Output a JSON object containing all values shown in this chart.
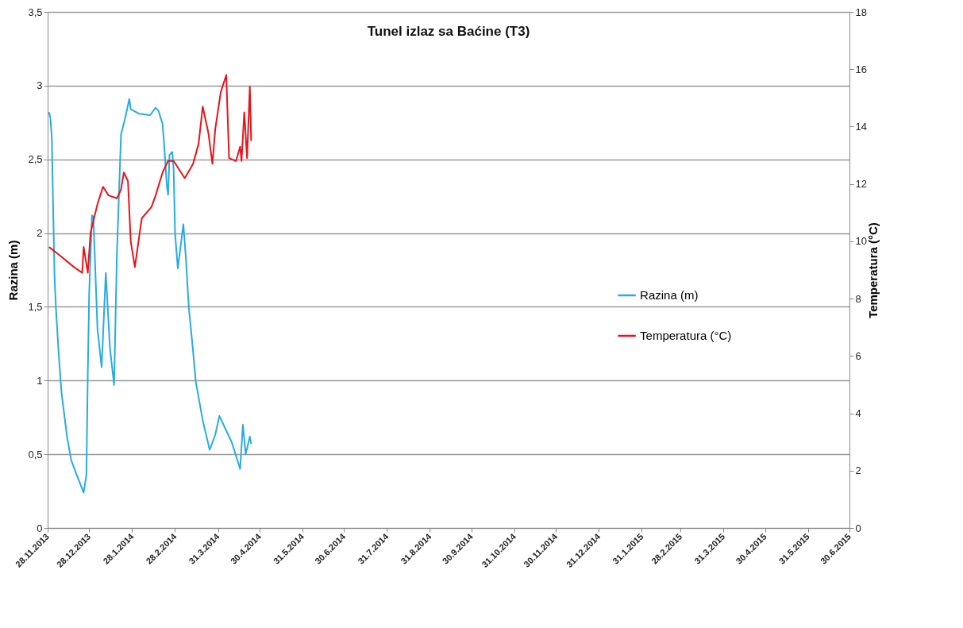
{
  "chart_data": {
    "type": "line",
    "title": "Tunel izlaz sa Baćine (T3)",
    "ylabel": "Razina (m)",
    "y2label": "Temperatura (°C)",
    "xlim": [
      "2013-11-28",
      "2015-06-30"
    ],
    "xticks": [
      {
        "value": "2013-11-28",
        "label": "28.11.2013"
      },
      {
        "value": "2013-12-28",
        "label": "28.12.2013"
      },
      {
        "value": "2014-01-28",
        "label": "28.1.2014"
      },
      {
        "value": "2014-02-28",
        "label": "28.2.2014"
      },
      {
        "value": "2014-03-31",
        "label": "31.3.2014"
      },
      {
        "value": "2014-04-30",
        "label": "30.4.2014"
      },
      {
        "value": "2014-05-31",
        "label": "31.5.2014"
      },
      {
        "value": "2014-06-30",
        "label": "30.6.2014"
      },
      {
        "value": "2014-07-31",
        "label": "31.7.2014"
      },
      {
        "value": "2014-08-31",
        "label": "31.8.2014"
      },
      {
        "value": "2014-09-30",
        "label": "30.9.2014"
      },
      {
        "value": "2014-10-31",
        "label": "31.10.2014"
      },
      {
        "value": "2014-11-30",
        "label": "30.11.2014"
      },
      {
        "value": "2014-12-31",
        "label": "31.12.2014"
      },
      {
        "value": "2015-01-31",
        "label": "31.1.2015"
      },
      {
        "value": "2015-02-28",
        "label": "28.2.2015"
      },
      {
        "value": "2015-03-31",
        "label": "31.3.2015"
      },
      {
        "value": "2015-04-30",
        "label": "30.4.2015"
      },
      {
        "value": "2015-05-31",
        "label": "31.5.2015"
      },
      {
        "value": "2015-06-30",
        "label": "30.6.2015"
      }
    ],
    "ylim": [
      0,
      3.5
    ],
    "yticks": [
      0,
      {
        "value": 0.5,
        "label": "0,5"
      },
      1,
      {
        "value": 1.5,
        "label": "1,5"
      },
      2,
      {
        "value": 2.5,
        "label": "2,5"
      },
      3,
      {
        "value": 3.5,
        "label": "3,5"
      }
    ],
    "y2lim": [
      0,
      18
    ],
    "y2ticks": [
      0,
      2,
      4,
      6,
      8,
      10,
      12,
      14,
      16,
      18
    ],
    "grid": "y",
    "legend": "right",
    "marker": "none",
    "line_style": "solid",
    "series": [
      {
        "name": "Razina (m)",
        "color": "#29abe2",
        "x": [
          "2013-11-29",
          "2013-11-30",
          "2013-12-01",
          "2013-12-02",
          "2013-12-03",
          "2013-12-04",
          "2013-12-06",
          "2013-12-08",
          "2013-12-12",
          "2013-12-15",
          "2013-12-19",
          "2013-12-24",
          "2013-12-26",
          "2013-12-27",
          "2013-12-28",
          "2013-12-30",
          "2013-12-31",
          "2014-01-03",
          "2014-01-06",
          "2014-01-09",
          "2014-01-12",
          "2014-01-15",
          "2014-01-17",
          "2014-01-20",
          "2014-01-23",
          "2014-01-26",
          "2014-01-27",
          "2014-02-02",
          "2014-02-10",
          "2014-02-14",
          "2014-02-16",
          "2014-02-19",
          "2014-02-20",
          "2014-02-22",
          "2014-02-23",
          "2014-02-24",
          "2014-02-26",
          "2014-02-27",
          "2014-02-28",
          "2014-03-02",
          "2014-03-06",
          "2014-03-08",
          "2014-03-09",
          "2014-03-10",
          "2014-03-13",
          "2014-03-15",
          "2014-03-20",
          "2014-03-25",
          "2014-03-29",
          "2014-04-01",
          "2014-04-04",
          "2014-04-10",
          "2014-04-16",
          "2014-04-18",
          "2014-04-20",
          "2014-04-23",
          "2014-04-24"
        ],
        "values": [
          2.82,
          2.78,
          2.65,
          2.16,
          1.7,
          1.49,
          1.18,
          0.92,
          0.62,
          0.46,
          0.36,
          0.24,
          0.36,
          1.05,
          1.59,
          2.12,
          2.11,
          1.35,
          1.09,
          1.73,
          1.22,
          0.97,
          1.85,
          2.67,
          2.78,
          2.91,
          2.84,
          2.81,
          2.8,
          2.85,
          2.83,
          2.74,
          2.62,
          2.33,
          2.26,
          2.53,
          2.55,
          2.43,
          2.0,
          1.76,
          2.06,
          1.81,
          1.64,
          1.49,
          1.2,
          0.99,
          0.73,
          0.53,
          0.63,
          0.76,
          0.7,
          0.58,
          0.4,
          0.7,
          0.5,
          0.62,
          0.57
        ]
      },
      {
        "name": "Temperatura (°C)",
        "color": "#e8141b",
        "axis": "y2",
        "x": [
          "2013-11-29",
          "2013-12-07",
          "2013-12-17",
          "2013-12-23",
          "2013-12-24",
          "2013-12-27",
          "2013-12-29",
          "2014-01-01",
          "2014-01-03",
          "2014-01-07",
          "2014-01-11",
          "2014-01-17",
          "2014-01-20",
          "2014-01-22",
          "2014-01-25",
          "2014-01-27",
          "2014-01-30",
          "2014-02-04",
          "2014-02-11",
          "2014-02-14",
          "2014-02-19",
          "2014-02-23",
          "2014-02-27",
          "2014-03-07",
          "2014-03-13",
          "2014-03-17",
          "2014-03-20",
          "2014-03-24",
          "2014-03-27",
          "2014-03-29",
          "2014-04-02",
          "2014-04-06",
          "2014-04-08",
          "2014-04-13",
          "2014-04-16",
          "2014-04-17",
          "2014-04-19",
          "2014-04-21",
          "2014-04-23",
          "2014-04-24"
        ],
        "values": [
          9.8,
          9.5,
          9.1,
          8.9,
          9.8,
          8.9,
          10.3,
          10.9,
          11.3,
          11.9,
          11.6,
          11.5,
          11.8,
          12.4,
          12.1,
          10.0,
          9.1,
          10.8,
          11.2,
          11.6,
          12.4,
          12.8,
          12.8,
          12.2,
          12.7,
          13.4,
          14.7,
          13.8,
          12.7,
          13.9,
          15.2,
          15.8,
          12.9,
          12.8,
          13.3,
          12.8,
          14.5,
          12.9,
          15.4,
          13.5
        ]
      }
    ]
  }
}
